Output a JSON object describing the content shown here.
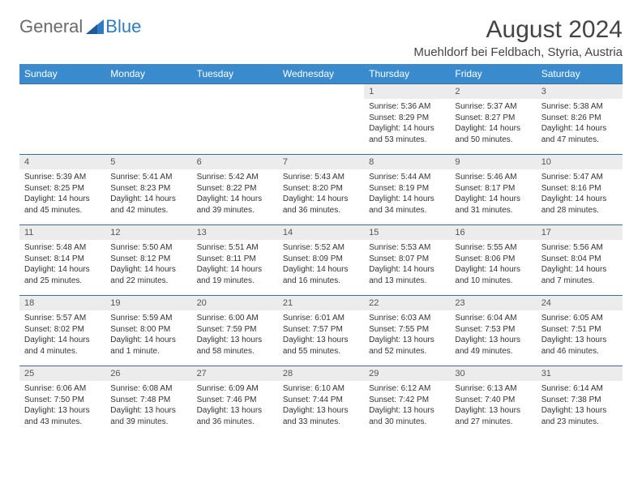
{
  "brand": {
    "part1": "General",
    "part2": "Blue"
  },
  "header": {
    "title": "August 2024",
    "location": "Muehldorf bei Feldbach, Styria, Austria"
  },
  "colors": {
    "header_bg": "#3a8bce",
    "header_text": "#ffffff",
    "row_border": "#3a6d9a",
    "daynum_bg": "#ececec",
    "body_text": "#333333",
    "logo_gray": "#6a6a6a",
    "logo_blue": "#2f7bc4",
    "page_bg": "#ffffff"
  },
  "typography": {
    "title_fontsize": 30,
    "location_fontsize": 15,
    "weekday_fontsize": 12,
    "daynum_fontsize": 11,
    "cell_fontsize": 10
  },
  "weekdays": [
    "Sunday",
    "Monday",
    "Tuesday",
    "Wednesday",
    "Thursday",
    "Friday",
    "Saturday"
  ],
  "weeks": [
    [
      {
        "date": "",
        "lines": []
      },
      {
        "date": "",
        "lines": []
      },
      {
        "date": "",
        "lines": []
      },
      {
        "date": "",
        "lines": []
      },
      {
        "date": "1",
        "lines": [
          "Sunrise: 5:36 AM",
          "Sunset: 8:29 PM",
          "Daylight: 14 hours and 53 minutes."
        ]
      },
      {
        "date": "2",
        "lines": [
          "Sunrise: 5:37 AM",
          "Sunset: 8:27 PM",
          "Daylight: 14 hours and 50 minutes."
        ]
      },
      {
        "date": "3",
        "lines": [
          "Sunrise: 5:38 AM",
          "Sunset: 8:26 PM",
          "Daylight: 14 hours and 47 minutes."
        ]
      }
    ],
    [
      {
        "date": "4",
        "lines": [
          "Sunrise: 5:39 AM",
          "Sunset: 8:25 PM",
          "Daylight: 14 hours and 45 minutes."
        ]
      },
      {
        "date": "5",
        "lines": [
          "Sunrise: 5:41 AM",
          "Sunset: 8:23 PM",
          "Daylight: 14 hours and 42 minutes."
        ]
      },
      {
        "date": "6",
        "lines": [
          "Sunrise: 5:42 AM",
          "Sunset: 8:22 PM",
          "Daylight: 14 hours and 39 minutes."
        ]
      },
      {
        "date": "7",
        "lines": [
          "Sunrise: 5:43 AM",
          "Sunset: 8:20 PM",
          "Daylight: 14 hours and 36 minutes."
        ]
      },
      {
        "date": "8",
        "lines": [
          "Sunrise: 5:44 AM",
          "Sunset: 8:19 PM",
          "Daylight: 14 hours and 34 minutes."
        ]
      },
      {
        "date": "9",
        "lines": [
          "Sunrise: 5:46 AM",
          "Sunset: 8:17 PM",
          "Daylight: 14 hours and 31 minutes."
        ]
      },
      {
        "date": "10",
        "lines": [
          "Sunrise: 5:47 AM",
          "Sunset: 8:16 PM",
          "Daylight: 14 hours and 28 minutes."
        ]
      }
    ],
    [
      {
        "date": "11",
        "lines": [
          "Sunrise: 5:48 AM",
          "Sunset: 8:14 PM",
          "Daylight: 14 hours and 25 minutes."
        ]
      },
      {
        "date": "12",
        "lines": [
          "Sunrise: 5:50 AM",
          "Sunset: 8:12 PM",
          "Daylight: 14 hours and 22 minutes."
        ]
      },
      {
        "date": "13",
        "lines": [
          "Sunrise: 5:51 AM",
          "Sunset: 8:11 PM",
          "Daylight: 14 hours and 19 minutes."
        ]
      },
      {
        "date": "14",
        "lines": [
          "Sunrise: 5:52 AM",
          "Sunset: 8:09 PM",
          "Daylight: 14 hours and 16 minutes."
        ]
      },
      {
        "date": "15",
        "lines": [
          "Sunrise: 5:53 AM",
          "Sunset: 8:07 PM",
          "Daylight: 14 hours and 13 minutes."
        ]
      },
      {
        "date": "16",
        "lines": [
          "Sunrise: 5:55 AM",
          "Sunset: 8:06 PM",
          "Daylight: 14 hours and 10 minutes."
        ]
      },
      {
        "date": "17",
        "lines": [
          "Sunrise: 5:56 AM",
          "Sunset: 8:04 PM",
          "Daylight: 14 hours and 7 minutes."
        ]
      }
    ],
    [
      {
        "date": "18",
        "lines": [
          "Sunrise: 5:57 AM",
          "Sunset: 8:02 PM",
          "Daylight: 14 hours and 4 minutes."
        ]
      },
      {
        "date": "19",
        "lines": [
          "Sunrise: 5:59 AM",
          "Sunset: 8:00 PM",
          "Daylight: 14 hours and 1 minute."
        ]
      },
      {
        "date": "20",
        "lines": [
          "Sunrise: 6:00 AM",
          "Sunset: 7:59 PM",
          "Daylight: 13 hours and 58 minutes."
        ]
      },
      {
        "date": "21",
        "lines": [
          "Sunrise: 6:01 AM",
          "Sunset: 7:57 PM",
          "Daylight: 13 hours and 55 minutes."
        ]
      },
      {
        "date": "22",
        "lines": [
          "Sunrise: 6:03 AM",
          "Sunset: 7:55 PM",
          "Daylight: 13 hours and 52 minutes."
        ]
      },
      {
        "date": "23",
        "lines": [
          "Sunrise: 6:04 AM",
          "Sunset: 7:53 PM",
          "Daylight: 13 hours and 49 minutes."
        ]
      },
      {
        "date": "24",
        "lines": [
          "Sunrise: 6:05 AM",
          "Sunset: 7:51 PM",
          "Daylight: 13 hours and 46 minutes."
        ]
      }
    ],
    [
      {
        "date": "25",
        "lines": [
          "Sunrise: 6:06 AM",
          "Sunset: 7:50 PM",
          "Daylight: 13 hours and 43 minutes."
        ]
      },
      {
        "date": "26",
        "lines": [
          "Sunrise: 6:08 AM",
          "Sunset: 7:48 PM",
          "Daylight: 13 hours and 39 minutes."
        ]
      },
      {
        "date": "27",
        "lines": [
          "Sunrise: 6:09 AM",
          "Sunset: 7:46 PM",
          "Daylight: 13 hours and 36 minutes."
        ]
      },
      {
        "date": "28",
        "lines": [
          "Sunrise: 6:10 AM",
          "Sunset: 7:44 PM",
          "Daylight: 13 hours and 33 minutes."
        ]
      },
      {
        "date": "29",
        "lines": [
          "Sunrise: 6:12 AM",
          "Sunset: 7:42 PM",
          "Daylight: 13 hours and 30 minutes."
        ]
      },
      {
        "date": "30",
        "lines": [
          "Sunrise: 6:13 AM",
          "Sunset: 7:40 PM",
          "Daylight: 13 hours and 27 minutes."
        ]
      },
      {
        "date": "31",
        "lines": [
          "Sunrise: 6:14 AM",
          "Sunset: 7:38 PM",
          "Daylight: 13 hours and 23 minutes."
        ]
      }
    ]
  ]
}
